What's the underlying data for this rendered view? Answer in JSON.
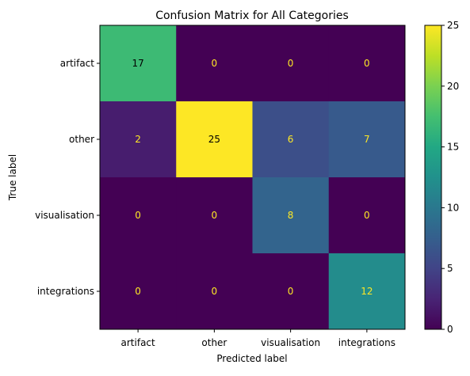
{
  "chart_data": {
    "type": "heatmap",
    "title": "Confusion Matrix for All Categories",
    "xlabel": "Predicted label",
    "ylabel": "True label",
    "x_categories": [
      "artifact",
      "other",
      "visualisation",
      "integrations"
    ],
    "y_categories": [
      "artifact",
      "other",
      "visualisation",
      "integrations"
    ],
    "values": [
      [
        17,
        0,
        0,
        0
      ],
      [
        2,
        25,
        6,
        7
      ],
      [
        0,
        0,
        8,
        0
      ],
      [
        0,
        0,
        0,
        12
      ]
    ],
    "colorbar": {
      "range": [
        0,
        25
      ],
      "ticks": [
        "0",
        "5",
        "10",
        "15",
        "20",
        "25"
      ],
      "colormap": "viridis"
    },
    "grid": false,
    "legend": "colorbar-right"
  }
}
